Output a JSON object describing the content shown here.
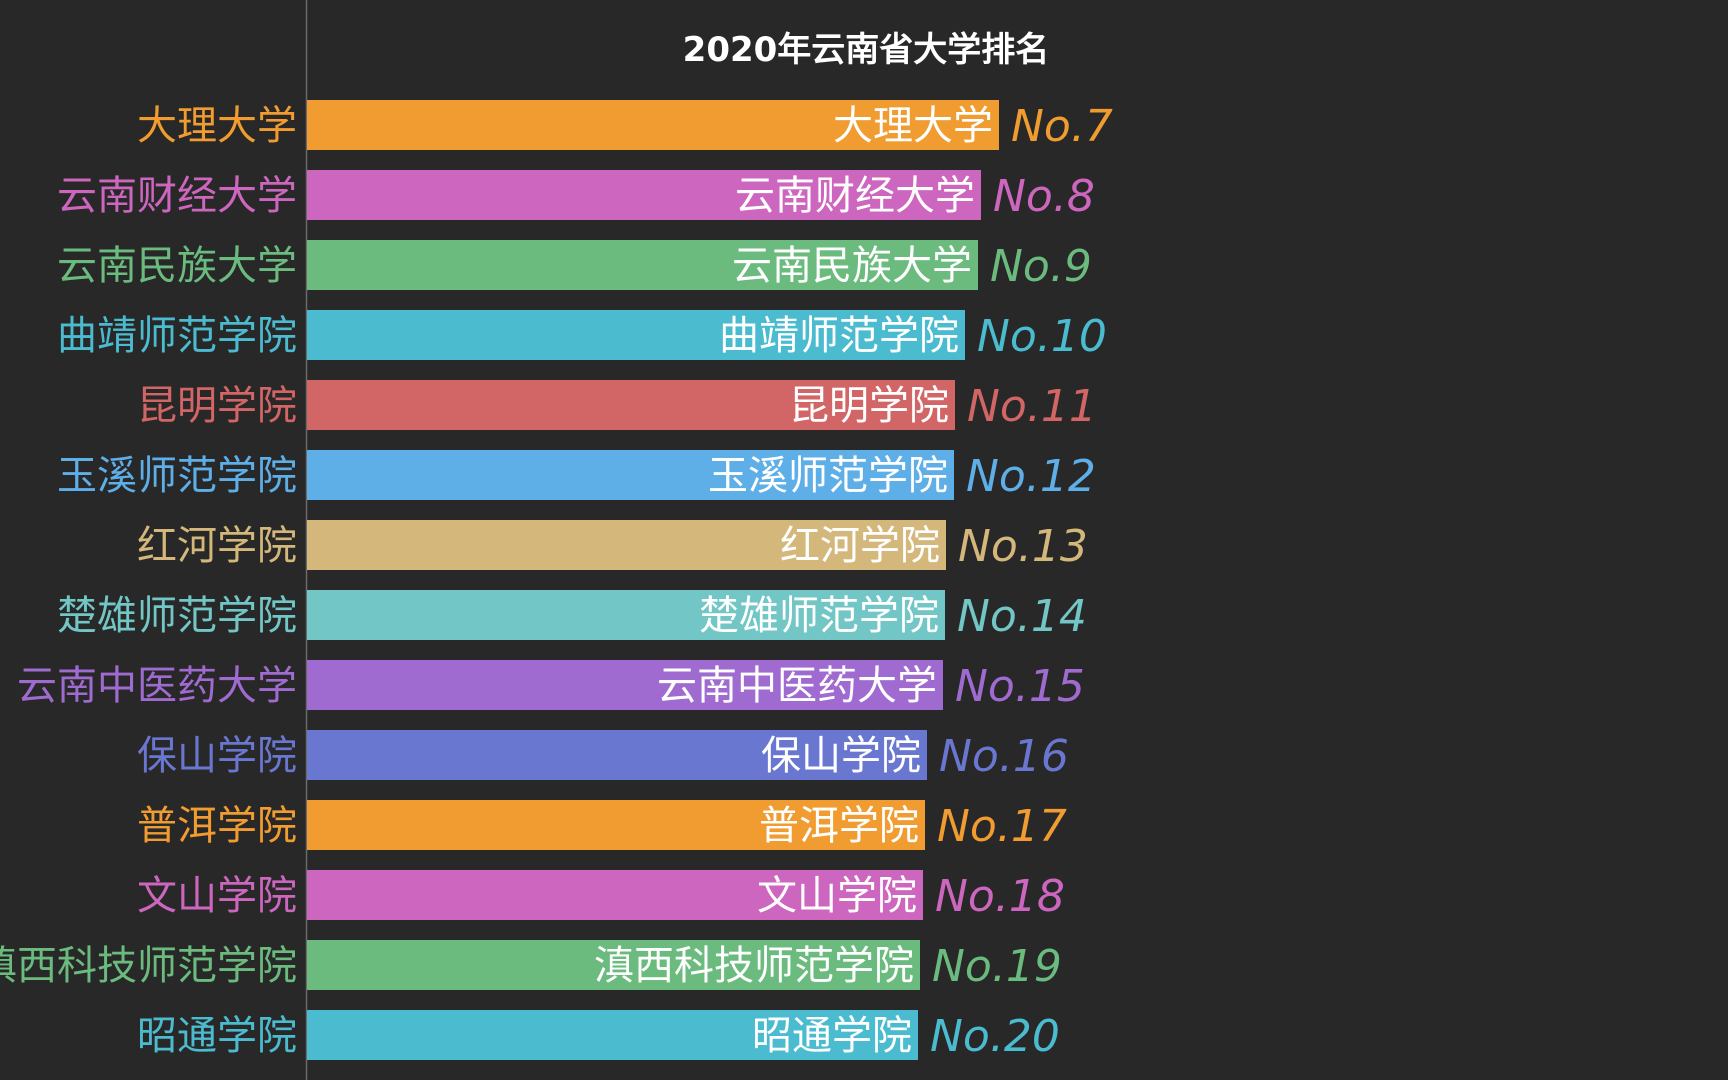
{
  "chart_data": {
    "type": "bar",
    "orientation": "horizontal",
    "title": "2020年云南省大学排名",
    "xlabel": "",
    "ylabel": "",
    "grid": false,
    "legend": "none",
    "categories": [
      "大理大学",
      "云南财经大学",
      "云南民族大学",
      "曲靖师范学院",
      "昆明学院",
      "玉溪师范学院",
      "红河学院",
      "楚雄师范学院",
      "云南中医药大学",
      "保山学院",
      "普洱学院",
      "文山学院",
      "滇西科技师范学院",
      "昭通学院"
    ],
    "values": [
      69.2,
      67.4,
      67.1,
      65.8,
      64.8,
      64.7,
      63.9,
      63.8,
      63.6,
      62.0,
      61.8,
      61.6,
      61.3,
      61.1
    ],
    "xlim": [
      0,
      100
    ],
    "bar_labels": [
      "大理大学",
      "云南财经大学",
      "云南民族大学",
      "曲靖师范学院",
      "昆明学院",
      "玉溪师范学院",
      "红河学院",
      "楚雄师范学院",
      "云南中医药大学",
      "保山学院",
      "普洱学院",
      "文山学院",
      "滇西科技师范学院",
      "昭通学院"
    ],
    "rank_labels": [
      "No.7",
      "No.8",
      "No.9",
      "No.10",
      "No.11",
      "No.12",
      "No.13",
      "No.14",
      "No.15",
      "No.16",
      "No.17",
      "No.18",
      "No.19",
      "No.20"
    ],
    "colors": [
      "#f09c30",
      "#cd66be",
      "#6bbb7f",
      "#4bbcd0",
      "#d26565",
      "#5eaee8",
      "#d4b77a",
      "#72c6c6",
      "#a06bd0",
      "#6a77d1",
      "#f09c30",
      "#cd66be",
      "#6bbb7f",
      "#4bbcd0"
    ]
  },
  "colors": {
    "background": "#282828",
    "axis_line": "#6a6a6a",
    "title": "#ffffff",
    "bar_text": "#ffffff"
  }
}
